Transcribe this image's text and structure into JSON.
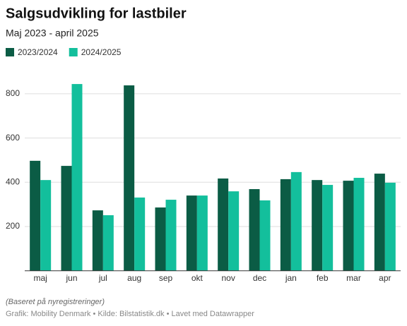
{
  "chart_data": {
    "type": "bar",
    "title": "Salgsudvikling for lastbiler",
    "subtitle": "Maj 2023 - april 2025",
    "categories": [
      "maj",
      "jun",
      "jul",
      "aug",
      "sep",
      "okt",
      "nov",
      "dec",
      "jan",
      "feb",
      "mar",
      "apr"
    ],
    "series": [
      {
        "name": "2023/2024",
        "color": "#0b5c45",
        "values": [
          497,
          474,
          273,
          838,
          286,
          340,
          417,
          369,
          414,
          410,
          407,
          439
        ]
      },
      {
        "name": "2024/2025",
        "color": "#13bf9c",
        "values": [
          410,
          844,
          251,
          331,
          321,
          340,
          359,
          318,
          446,
          388,
          420,
          398
        ]
      }
    ],
    "ylim": [
      0,
      880
    ],
    "yticks": [
      200,
      400,
      600,
      800
    ],
    "grid": true,
    "note": "(Baseret på nyregistreringer)",
    "source": "Grafik: Mobility Denmark • Kilde: Bilstatistik.dk • Lavet med Datawrapper"
  }
}
